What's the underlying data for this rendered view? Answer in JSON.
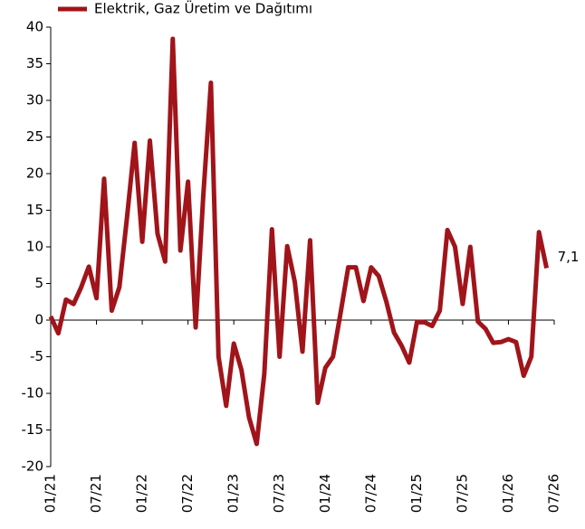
{
  "chart_data": {
    "type": "line",
    "categories": [
      "01/21",
      null,
      null,
      null,
      null,
      null,
      "07/21",
      null,
      null,
      null,
      null,
      null,
      "01/22",
      null,
      null,
      null,
      null,
      null,
      "07/22",
      null,
      null,
      null,
      null,
      null,
      "01/23",
      null,
      null,
      null,
      null,
      null,
      "07/23",
      null,
      null,
      null,
      null,
      null,
      "01/24",
      null,
      null,
      null,
      null,
      null,
      "07/24",
      null,
      null,
      null,
      null,
      null,
      "01/25",
      null,
      null,
      null,
      null,
      null,
      "07/25",
      null,
      null,
      null,
      null,
      null,
      "01/26",
      null,
      null,
      null,
      null,
      null,
      "07/26"
    ],
    "series": [
      {
        "name": "Elektrik, Gaz Üretim ve Dağıtımı",
        "color": "#a0141a",
        "values": [
          0.5,
          -1.8,
          2.8,
          2.2,
          4.5,
          7.3,
          3.0,
          19.3,
          1.3,
          4.5,
          14,
          24.2,
          10.7,
          24.5,
          11.8,
          8.0,
          38.4,
          9.5,
          18.9,
          -1.0,
          17,
          32.4,
          -5,
          -11.7,
          -3.2,
          -6.8,
          -13.3,
          -16.9,
          -7.3,
          12.4,
          -5,
          10.1,
          5.2,
          -4.3,
          10.9,
          -11.3,
          -6.5,
          -5,
          1,
          7.2,
          7.2,
          2.6,
          7.2,
          6.0,
          2.5,
          -1.7,
          -3.5,
          -5.8,
          -0.3,
          -0.3,
          -0.8,
          1.3,
          12.3,
          10,
          2.2,
          10,
          -0.2,
          -1.2,
          -3.1,
          -3,
          -2.6,
          -3,
          -7.6,
          -5,
          12,
          7.1,
          null
        ],
        "value_labels": [
          null,
          null,
          null,
          null,
          null,
          null,
          null,
          null,
          null,
          null,
          null,
          null,
          null,
          null,
          null,
          null,
          null,
          null,
          null,
          null,
          null,
          null,
          null,
          null,
          null,
          null,
          null,
          null,
          null,
          null,
          null,
          null,
          null,
          null,
          null,
          null,
          null,
          null,
          null,
          null,
          null,
          null,
          null,
          null,
          null,
          null,
          null,
          null,
          null,
          null,
          null,
          null,
          null,
          null,
          null,
          null,
          null,
          null,
          null,
          null,
          null,
          null,
          null,
          null,
          null,
          "7,1",
          null
        ]
      }
    ],
    "ylim": [
      -20,
      40
    ],
    "yticks": [
      -20,
      -15,
      -10,
      -5,
      0,
      5,
      10,
      15,
      20,
      25,
      30,
      35,
      40
    ],
    "legend": "top-left"
  }
}
